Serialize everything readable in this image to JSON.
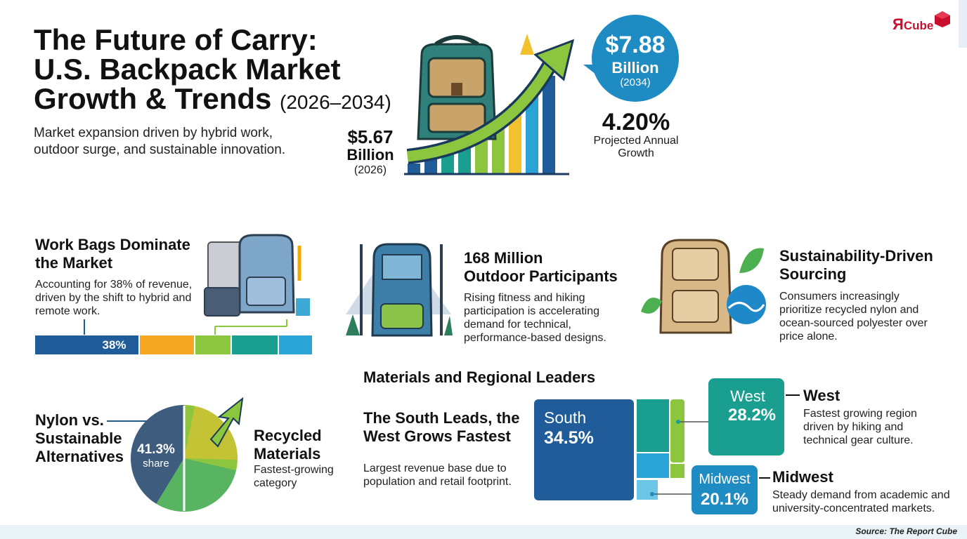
{
  "header": {
    "title_line1": "The Future of Carry:",
    "title_line2": "U.S. Backpack Market",
    "title_line3": "Growth & Trends",
    "title_years": "(2026–2034)",
    "subtitle": "Market expansion driven by hybrid work, outdoor surge, and sustainable innovation."
  },
  "logo": {
    "mark": "Я",
    "text": "Cube"
  },
  "growth": {
    "start_value": "$5.67",
    "start_unit": "Billion",
    "start_year": "(2026)",
    "end_value": "$7.88",
    "end_unit": "Billion",
    "end_year": "(2034)",
    "cagr": "4.20%",
    "cagr_label_line1": "Projected Annual",
    "cagr_label_line2": "Growth"
  },
  "work_bags": {
    "title": "Work Bags Dominate the Market",
    "body": "Accounting for 38% of revenue, driven by the shift to hybrid and remote work.",
    "bar_label": "38%",
    "share": 0.38
  },
  "outdoor": {
    "title_line1": "168 Million",
    "title_line2": "Outdoor Participants",
    "body": "Rising fitness and hiking participation is accelerating demand for technical, performance-based designs."
  },
  "sustainability": {
    "title": "Sustainability-Driven Sourcing",
    "body": "Consumers increasingly prioritize recycled nylon and ocean-sourced polyester over price alone."
  },
  "nylon": {
    "title_line1": "Nylon vs.",
    "title_line2": "Sustainable",
    "title_line3": "Alternatives",
    "share_value": "41.3%",
    "share_label": "share",
    "share": 0.413,
    "recycled_title_line1": "Recycled",
    "recycled_title_line2": "Materials",
    "recycled_body_line1": "Fastest-growing",
    "recycled_body_line2": "category"
  },
  "regions": {
    "section_title": "Materials and Regional Leaders",
    "headline_line1": "The South Leads, the",
    "headline_line2": "West Grows Fastest",
    "south_body": "Largest revenue base due to population and retail footprint.",
    "south_name": "South",
    "south_value": "34.5%",
    "west_name": "West",
    "west_value": "28.2%",
    "west_title": "West",
    "west_body": "Fastest growing region driven by hiking and technical gear culture.",
    "midwest_name": "Midwest",
    "midwest_value": "20.1%",
    "midwest_title": "Midwest",
    "midwest_body": "Steady demand from academic and university-concentrated markets."
  },
  "colors": {
    "navy": "#1f5c99",
    "teal": "#1a9e8f",
    "green": "#8cc63f",
    "orange": "#f5a623",
    "yellow": "#f2c12e",
    "sky": "#2aa3d6",
    "blue_bubble": "#1e8bc3"
  },
  "footer": {
    "source": "Source: The Report Cube"
  }
}
